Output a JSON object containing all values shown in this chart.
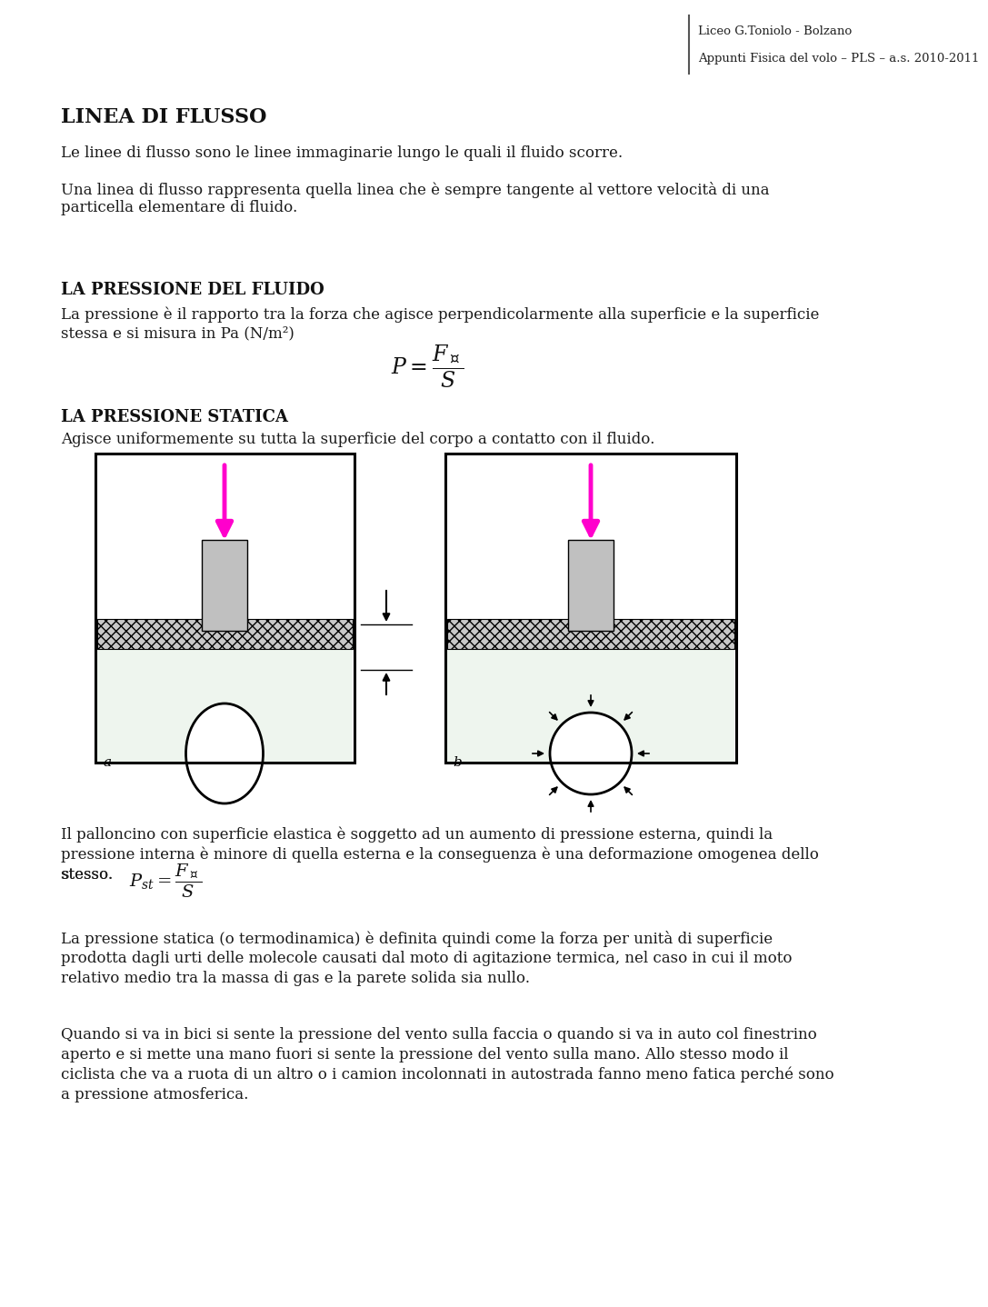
{
  "header_right_line1": "Liceo G.Toniolo - Bolzano",
  "header_right_line2": "Appunti Fisica del volo – PLS – a.s. 2010-2011",
  "title1": "LINEA DI FLUSSO",
  "para1": "Le linee di flusso sono le linee immaginarie lungo le quali il fluido scorre.",
  "para2_l1": "Una linea di flusso rappresenta quella linea che è sempre tangente al vettore velocità di una",
  "para2_l2": "particella elementare di fluido.",
  "title2": "LA PRESSIONE DEL FLUIDO",
  "para3_l1": "La pressione è il rapporto tra la forza che agisce perpendicolarmente alla superficie e la superficie",
  "para3_l2": "stessa e si misura in Pa (N/m²)",
  "title3": "LA PRESSIONE STATICA",
  "para4": "Agisce uniformemente su tutta la superficie del corpo a contatto con il fluido.",
  "label_a": "a",
  "label_b": "b",
  "para5_l1": "Il palloncino con superficie elastica è soggetto ad un aumento di pressione esterna, quindi la",
  "para5_l2": "pressione interna è minore di quella esterna e la conseguenza è una deformazione omogenea dello",
  "para5_l3": "stesso.",
  "para6_l1": "La pressione statica (o termodinamica) è definita quindi come la forza per unità di superficie",
  "para6_l2": "prodotta dagli urti delle molecole causati dal moto di agitazione termica, nel caso in cui il moto",
  "para6_l3": "relativo medio tra la massa di gas e la parete solida sia nullo.",
  "para7_l1": "Quando si va in bici si sente la pressione del vento sulla faccia o quando si va in auto col finestrino",
  "para7_l2": "aperto e si mette una mano fuori si sente la pressione del vento sulla mano. Allo stesso modo il",
  "para7_l3": "ciclista che va a ruota di un altro o i camion incolonnati in autostrada fanno meno fatica perché sono",
  "para7_l4": "a pressione atmosferica.",
  "bg_color": "#ffffff",
  "text_color": "#1a1a1a",
  "arrow_color": "#ff00cc",
  "fluid_color": "#eef5ee",
  "hatch_color": "#aaaaaa"
}
